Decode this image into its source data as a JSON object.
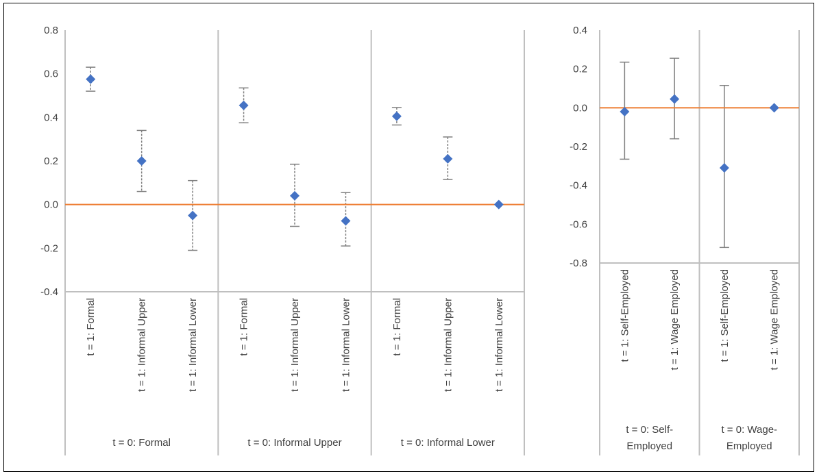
{
  "chart_data": [
    {
      "type": "scatter",
      "title": "",
      "xlabel": "",
      "ylabel": "",
      "ylim": [
        -0.4,
        0.8
      ],
      "yticks": [
        "0.8",
        "0.6",
        "0.4",
        "0.2",
        "0.0",
        "-0.2",
        "-0.4"
      ],
      "yticks_values": [
        0.8,
        0.6,
        0.4,
        0.2,
        0.0,
        -0.2,
        -0.4
      ],
      "grid": false,
      "legend": "none",
      "errorbar_style": "dashed",
      "groups": [
        {
          "label": "t = 0: Formal",
          "points": [
            {
              "category": "t = 1: Formal",
              "value": 0.575,
              "lower": 0.52,
              "upper": 0.63
            },
            {
              "category": "t = 1: Informal Upper",
              "value": 0.2,
              "lower": 0.06,
              "upper": 0.34
            },
            {
              "category": "t = 1: Informal Lower",
              "value": -0.05,
              "lower": -0.21,
              "upper": 0.11
            }
          ]
        },
        {
          "label": "t = 0: Informal Upper",
          "points": [
            {
              "category": "t = 1: Formal",
              "value": 0.455,
              "lower": 0.375,
              "upper": 0.535
            },
            {
              "category": "t = 1: Informal Upper",
              "value": 0.04,
              "lower": -0.1,
              "upper": 0.185
            },
            {
              "category": "t = 1: Informal Lower",
              "value": -0.075,
              "lower": -0.19,
              "upper": 0.055
            }
          ]
        },
        {
          "label": "t = 0: Informal Lower",
          "points": [
            {
              "category": "t = 1: Formal",
              "value": 0.405,
              "lower": 0.365,
              "upper": 0.445
            },
            {
              "category": "t = 1: Informal Upper",
              "value": 0.21,
              "lower": 0.115,
              "upper": 0.31
            },
            {
              "category": "t = 1: Informal Lower",
              "value": 0.0,
              "lower": 0.0,
              "upper": 0.0
            }
          ]
        }
      ],
      "reference_line": 0.0,
      "colors": {
        "marker": "#4472C4",
        "reference": "#ED7D31",
        "errorbar": "#7F7F7F",
        "axis": "#BFBFBF"
      }
    },
    {
      "type": "scatter",
      "title": "",
      "xlabel": "",
      "ylabel": "",
      "ylim": [
        -0.8,
        0.4
      ],
      "yticks": [
        "0.4",
        "0.2",
        "0.0",
        "-0.2",
        "-0.4",
        "-0.6",
        "-0.8"
      ],
      "yticks_values": [
        0.4,
        0.2,
        0.0,
        -0.2,
        -0.4,
        -0.6,
        -0.8
      ],
      "grid": false,
      "legend": "none",
      "errorbar_style": "solid",
      "groups": [
        {
          "label": "t = 0: Self-Employed",
          "label_lines": [
            "t = 0: Self-",
            "Employed"
          ],
          "points": [
            {
              "category": "t = 1: Self-Employed",
              "value": -0.02,
              "lower": -0.265,
              "upper": 0.235
            },
            {
              "category": "t = 1: Wage Employed",
              "value": 0.045,
              "lower": -0.16,
              "upper": 0.255
            }
          ]
        },
        {
          "label": "t = 0: Wage-Employed",
          "label_lines": [
            "t = 0: Wage-",
            "Employed"
          ],
          "points": [
            {
              "category": "t = 1: Self-Employed",
              "value": -0.31,
              "lower": -0.72,
              "upper": 0.115
            },
            {
              "category": "t = 1: Wage Employed",
              "value": 0.0,
              "lower": 0.0,
              "upper": 0.0
            }
          ]
        }
      ],
      "reference_line": 0.0,
      "colors": {
        "marker": "#4472C4",
        "reference": "#ED7D31",
        "errorbar": "#7F7F7F",
        "axis": "#BFBFBF"
      }
    }
  ]
}
